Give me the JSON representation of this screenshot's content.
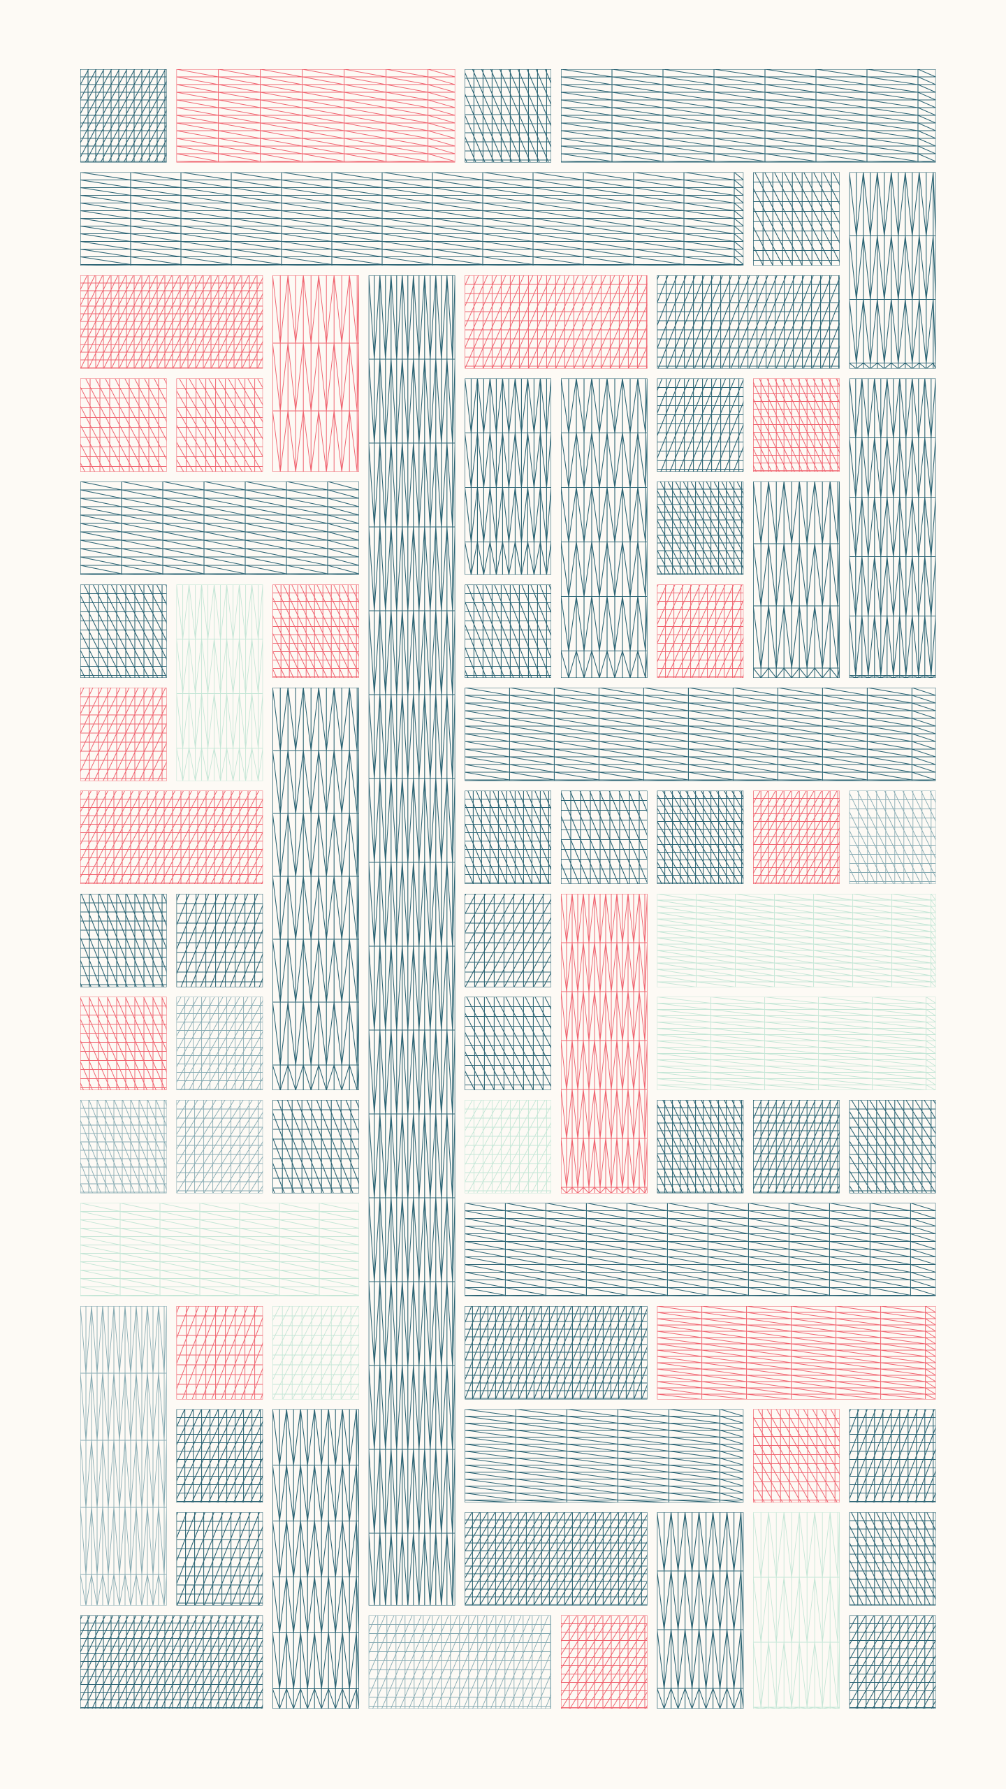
{
  "palette": {
    "background": "#fdfaf5",
    "teal": "#2c6474",
    "coral": "#f06470",
    "pale_teal": "#86aab2",
    "mint": "#c4e6d6"
  },
  "artwork": {
    "style": "generative-hatched-grid",
    "columns": 9,
    "rows": 16,
    "hatch_patterns": [
      "grid-diagonal",
      "column-zigzag",
      "row-zigzag"
    ],
    "tiles": [
      {
        "col": 0,
        "row": 0,
        "w": 1,
        "h": 1,
        "color": "teal"
      },
      {
        "col": 1,
        "row": 0,
        "w": 3,
        "h": 1,
        "color": "coral"
      },
      {
        "col": 4,
        "row": 0,
        "w": 1,
        "h": 1,
        "color": "teal"
      },
      {
        "col": 5,
        "row": 0,
        "w": 4,
        "h": 1,
        "color": "teal"
      },
      {
        "col": 0,
        "row": 1,
        "w": 7,
        "h": 1,
        "color": "teal"
      },
      {
        "col": 7,
        "row": 1,
        "w": 1,
        "h": 1,
        "color": "teal"
      },
      {
        "col": 8,
        "row": 1,
        "w": 1,
        "h": 2,
        "color": "teal"
      },
      {
        "col": 0,
        "row": 2,
        "w": 2,
        "h": 1,
        "color": "coral"
      },
      {
        "col": 2,
        "row": 2,
        "w": 1,
        "h": 2,
        "color": "coral"
      },
      {
        "col": 3,
        "row": 2,
        "w": 1,
        "h": 13,
        "color": "teal"
      },
      {
        "col": 4,
        "row": 2,
        "w": 2,
        "h": 1,
        "color": "coral"
      },
      {
        "col": 6,
        "row": 2,
        "w": 2,
        "h": 1,
        "color": "teal"
      },
      {
        "col": 0,
        "row": 3,
        "w": 1,
        "h": 1,
        "color": "coral"
      },
      {
        "col": 1,
        "row": 3,
        "w": 1,
        "h": 1,
        "color": "coral"
      },
      {
        "col": 4,
        "row": 3,
        "w": 1,
        "h": 2,
        "color": "teal"
      },
      {
        "col": 5,
        "row": 3,
        "w": 1,
        "h": 3,
        "color": "teal"
      },
      {
        "col": 6,
        "row": 3,
        "w": 1,
        "h": 1,
        "color": "teal"
      },
      {
        "col": 7,
        "row": 3,
        "w": 1,
        "h": 1,
        "color": "coral"
      },
      {
        "col": 8,
        "row": 3,
        "w": 1,
        "h": 3,
        "color": "teal"
      },
      {
        "col": 0,
        "row": 4,
        "w": 3,
        "h": 1,
        "color": "teal"
      },
      {
        "col": 6,
        "row": 4,
        "w": 1,
        "h": 1,
        "color": "teal"
      },
      {
        "col": 7,
        "row": 4,
        "w": 1,
        "h": 2,
        "color": "teal"
      },
      {
        "col": 0,
        "row": 5,
        "w": 1,
        "h": 1,
        "color": "teal"
      },
      {
        "col": 1,
        "row": 5,
        "w": 1,
        "h": 2,
        "color": "mint"
      },
      {
        "col": 2,
        "row": 5,
        "w": 1,
        "h": 1,
        "color": "coral"
      },
      {
        "col": 4,
        "row": 5,
        "w": 1,
        "h": 1,
        "color": "teal"
      },
      {
        "col": 6,
        "row": 5,
        "w": 1,
        "h": 1,
        "color": "coral"
      },
      {
        "col": 0,
        "row": 6,
        "w": 1,
        "h": 1,
        "color": "coral"
      },
      {
        "col": 2,
        "row": 6,
        "w": 1,
        "h": 4,
        "color": "teal"
      },
      {
        "col": 4,
        "row": 6,
        "w": 5,
        "h": 1,
        "color": "teal"
      },
      {
        "col": 0,
        "row": 7,
        "w": 2,
        "h": 1,
        "color": "coral"
      },
      {
        "col": 4,
        "row": 7,
        "w": 1,
        "h": 1,
        "color": "teal"
      },
      {
        "col": 5,
        "row": 7,
        "w": 1,
        "h": 1,
        "color": "teal"
      },
      {
        "col": 6,
        "row": 7,
        "w": 1,
        "h": 1,
        "color": "teal"
      },
      {
        "col": 7,
        "row": 7,
        "w": 1,
        "h": 1,
        "color": "coral"
      },
      {
        "col": 8,
        "row": 7,
        "w": 1,
        "h": 1,
        "color": "pale_teal"
      },
      {
        "col": 0,
        "row": 8,
        "w": 1,
        "h": 1,
        "color": "teal"
      },
      {
        "col": 1,
        "row": 8,
        "w": 1,
        "h": 1,
        "color": "teal"
      },
      {
        "col": 4,
        "row": 8,
        "w": 1,
        "h": 1,
        "color": "teal"
      },
      {
        "col": 5,
        "row": 8,
        "w": 1,
        "h": 3,
        "color": "coral"
      },
      {
        "col": 6,
        "row": 8,
        "w": 3,
        "h": 1,
        "color": "mint"
      },
      {
        "col": 0,
        "row": 9,
        "w": 1,
        "h": 1,
        "color": "coral"
      },
      {
        "col": 1,
        "row": 9,
        "w": 1,
        "h": 1,
        "color": "pale_teal"
      },
      {
        "col": 4,
        "row": 9,
        "w": 1,
        "h": 1,
        "color": "teal"
      },
      {
        "col": 6,
        "row": 9,
        "w": 3,
        "h": 1,
        "color": "mint"
      },
      {
        "col": 0,
        "row": 10,
        "w": 1,
        "h": 1,
        "color": "pale_teal"
      },
      {
        "col": 1,
        "row": 10,
        "w": 1,
        "h": 1,
        "color": "pale_teal"
      },
      {
        "col": 2,
        "row": 10,
        "w": 1,
        "h": 1,
        "color": "teal"
      },
      {
        "col": 4,
        "row": 10,
        "w": 1,
        "h": 1,
        "color": "mint"
      },
      {
        "col": 6,
        "row": 10,
        "w": 1,
        "h": 1,
        "color": "teal"
      },
      {
        "col": 7,
        "row": 10,
        "w": 1,
        "h": 1,
        "color": "teal"
      },
      {
        "col": 8,
        "row": 10,
        "w": 1,
        "h": 1,
        "color": "teal"
      },
      {
        "col": 0,
        "row": 11,
        "w": 3,
        "h": 1,
        "color": "mint"
      },
      {
        "col": 4,
        "row": 11,
        "w": 5,
        "h": 1,
        "color": "teal"
      },
      {
        "col": 0,
        "row": 12,
        "w": 1,
        "h": 3,
        "color": "pale_teal"
      },
      {
        "col": 1,
        "row": 12,
        "w": 1,
        "h": 1,
        "color": "coral"
      },
      {
        "col": 2,
        "row": 12,
        "w": 1,
        "h": 1,
        "color": "mint"
      },
      {
        "col": 4,
        "row": 12,
        "w": 2,
        "h": 1,
        "color": "teal"
      },
      {
        "col": 6,
        "row": 12,
        "w": 3,
        "h": 1,
        "color": "coral"
      },
      {
        "col": 1,
        "row": 13,
        "w": 1,
        "h": 1,
        "color": "teal"
      },
      {
        "col": 2,
        "row": 13,
        "w": 1,
        "h": 3,
        "color": "teal"
      },
      {
        "col": 4,
        "row": 13,
        "w": 3,
        "h": 1,
        "color": "teal"
      },
      {
        "col": 7,
        "row": 13,
        "w": 1,
        "h": 1,
        "color": "coral"
      },
      {
        "col": 8,
        "row": 13,
        "w": 1,
        "h": 1,
        "color": "teal"
      },
      {
        "col": 1,
        "row": 14,
        "w": 1,
        "h": 1,
        "color": "teal"
      },
      {
        "col": 4,
        "row": 14,
        "w": 2,
        "h": 1,
        "color": "teal"
      },
      {
        "col": 6,
        "row": 14,
        "w": 1,
        "h": 2,
        "color": "teal"
      },
      {
        "col": 7,
        "row": 14,
        "w": 1,
        "h": 2,
        "color": "mint"
      },
      {
        "col": 8,
        "row": 14,
        "w": 1,
        "h": 1,
        "color": "teal"
      },
      {
        "col": 0,
        "row": 15,
        "w": 2,
        "h": 1,
        "color": "teal"
      },
      {
        "col": 3,
        "row": 15,
        "w": 2,
        "h": 1,
        "color": "pale_teal"
      },
      {
        "col": 5,
        "row": 15,
        "w": 1,
        "h": 1,
        "color": "coral"
      },
      {
        "col": 8,
        "row": 15,
        "w": 1,
        "h": 1,
        "color": "teal"
      }
    ]
  }
}
